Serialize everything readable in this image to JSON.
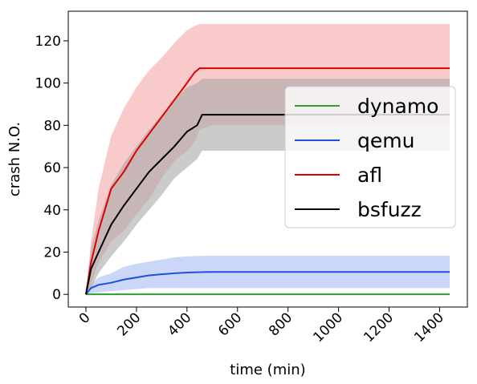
{
  "chart_data": {
    "type": "line",
    "xlabel": "time (min)",
    "ylabel": "crash N.O.",
    "xlim": [
      -70,
      1510
    ],
    "ylim": [
      -6,
      134
    ],
    "xticks": [
      0,
      200,
      400,
      600,
      800,
      1000,
      1200,
      1400
    ],
    "yticks": [
      0,
      20,
      40,
      60,
      80,
      100,
      120
    ],
    "xtick_labels": [
      "0",
      "200",
      "400",
      "600",
      "800",
      "1000",
      "1200",
      "1400"
    ],
    "ytick_labels": [
      "0",
      "20",
      "40",
      "60",
      "80",
      "100",
      "120"
    ],
    "legend_position": "center-right",
    "grid": false,
    "series": [
      {
        "name": "dynamo",
        "color": "#2ca02c",
        "band_color": "#2ca02c",
        "x": [
          0,
          1440
        ],
        "y": [
          0,
          0
        ],
        "lower": [
          0,
          0
        ],
        "upper": [
          0,
          0
        ]
      },
      {
        "name": "qemu",
        "color": "#1f4fdc",
        "band_color": "#a8bdf0",
        "x": [
          0,
          20,
          50,
          100,
          150,
          200,
          250,
          300,
          350,
          400,
          450,
          500,
          600,
          800,
          1000,
          1200,
          1440
        ],
        "y": [
          0,
          3,
          4.5,
          5.5,
          7,
          8,
          9,
          9.5,
          10,
          10.3,
          10.5,
          10.6,
          10.6,
          10.6,
          10.6,
          10.6,
          10.6
        ],
        "lower": [
          0,
          0.5,
          1,
          1.5,
          2,
          2.5,
          3,
          3,
          3,
          3,
          3,
          3,
          3,
          3,
          3,
          3,
          3
        ],
        "upper": [
          0,
          5,
          8,
          10,
          13,
          14.5,
          15.5,
          16.5,
          17.5,
          18,
          18.2,
          18.3,
          18.3,
          18.3,
          18.3,
          18.3,
          18.3
        ]
      },
      {
        "name": "afl",
        "color": "#e00000",
        "band_color": "#f4a6a6",
        "x": [
          0,
          20,
          50,
          100,
          150,
          200,
          250,
          300,
          350,
          400,
          430,
          450,
          500,
          600,
          800,
          1000,
          1200,
          1440
        ],
        "y": [
          0,
          15,
          30,
          50,
          58,
          68,
          76,
          84,
          92,
          100,
          105,
          107,
          107,
          107,
          107,
          107,
          107,
          107
        ],
        "lower": [
          0,
          5,
          15,
          25,
          30,
          38,
          45,
          55,
          63,
          68,
          72,
          78,
          80,
          80,
          80,
          80,
          80,
          80
        ],
        "upper": [
          0,
          25,
          50,
          75,
          88,
          98,
          106,
          112,
          119,
          125,
          127,
          128,
          128,
          128,
          128,
          128,
          128,
          128
        ]
      },
      {
        "name": "bsfuzz",
        "color": "#000000",
        "band_color": "#a8a8a8",
        "x": [
          0,
          20,
          50,
          100,
          150,
          200,
          250,
          300,
          350,
          400,
          440,
          460,
          500,
          600,
          800,
          1000,
          1200,
          1440
        ],
        "y": [
          0,
          12,
          20,
          33,
          42,
          50,
          58,
          64,
          70,
          77,
          80,
          85,
          85,
          85,
          85,
          85,
          85,
          85
        ],
        "lower": [
          0,
          3,
          10,
          18,
          25,
          33,
          40,
          47,
          55,
          60,
          64,
          68,
          68,
          68,
          68,
          68,
          68,
          68
        ],
        "upper": [
          0,
          22,
          35,
          52,
          62,
          70,
          78,
          85,
          92,
          98,
          100,
          102,
          102,
          102,
          102,
          102,
          102,
          102
        ]
      }
    ]
  }
}
